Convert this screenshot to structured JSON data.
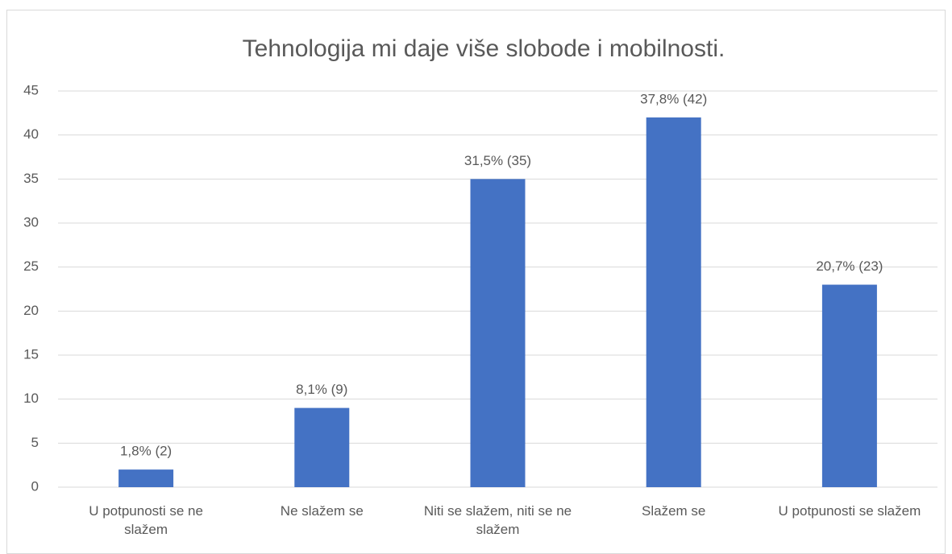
{
  "chart_data": {
    "type": "bar",
    "title": "Tehnologija mi daje više slobode i mobilnosti.",
    "categories": [
      "U potpunosti se ne slažem",
      "Ne slažem se",
      "Niti se slažem, niti se ne slažem",
      "Slažem se",
      "U potpunosti se slažem"
    ],
    "values": [
      2,
      9,
      35,
      42,
      23
    ],
    "value_labels": [
      "1,8% (2)",
      "8,1% (9)",
      "31,5% (35)",
      "37,8% (42)",
      "20,7% (23)"
    ],
    "color": "#4472c4",
    "ylim": [
      0,
      45
    ],
    "yticks": [
      0,
      5,
      10,
      15,
      20,
      25,
      30,
      35,
      40,
      45
    ],
    "grid": true
  }
}
